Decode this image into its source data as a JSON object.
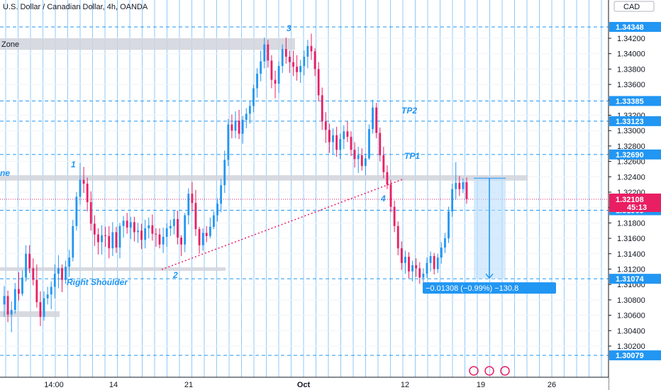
{
  "header": {
    "title": "U.S. Dollar / Canadian Dollar, 4h, OANDA",
    "currency": "CAD"
  },
  "chart_data": {
    "type": "candlestick",
    "symbol": "USDCAD",
    "interval": "4h",
    "ylim": [
      1.3,
      1.345
    ],
    "y_ticks": [
      1.302,
      1.304,
      1.306,
      1.308,
      1.31,
      1.312,
      1.314,
      1.316,
      1.318,
      1.32,
      1.322,
      1.324,
      1.326,
      1.328,
      1.33,
      1.332,
      1.334,
      1.336,
      1.338,
      1.34,
      1.342
    ],
    "y_tick_labels": [
      "1.30200",
      "1.30400",
      "1.30600",
      "1.30800",
      "1.31000",
      "1.31200",
      "1.31400",
      "1.31600",
      "1.31800",
      "1.32000",
      "1.32200",
      "1.32400",
      "1.32600",
      "1.32800",
      "1.33000",
      "1.33200",
      "1.33400",
      "1.33600",
      "1.33800",
      "1.34000",
      "1.34200"
    ],
    "x_ticks": [
      "14:00",
      "14",
      "21",
      "Oct",
      "12",
      "19",
      "26"
    ],
    "level_lines": [
      {
        "value": 1.34348,
        "label": "1.34348"
      },
      {
        "value": 1.33385,
        "label": "1.33385"
      },
      {
        "value": 1.33123,
        "label": "1.33123"
      },
      {
        "value": 1.3269,
        "label": "1.32690"
      },
      {
        "value": 1.31965,
        "label": "1.31965"
      },
      {
        "value": 1.31074,
        "label": "1.31074"
      },
      {
        "value": 1.30079,
        "label": "1.30079"
      }
    ],
    "current_price": {
      "value": 1.32108,
      "label": "1.32108",
      "countdown": "45:13"
    },
    "zones": [
      {
        "label": "Zone",
        "from": 1.3405,
        "to": 1.342
      },
      {
        "label": "ne",
        "from": 1.3235,
        "to": 1.3242
      }
    ],
    "annotations": [
      "1",
      "2",
      "3",
      "4",
      "TP2",
      "TP1",
      "Right Shoulder"
    ],
    "measure": {
      "from": 1.32382,
      "to": 1.31074,
      "label": "−0.01308 (−0.99%) −130.8"
    },
    "candles": [
      [
        1.3074,
        1.3098,
        1.3058,
        1.3085
      ],
      [
        1.3085,
        1.3092,
        1.3051,
        1.3061
      ],
      [
        1.3061,
        1.3078,
        1.3038,
        1.3067
      ],
      [
        1.3067,
        1.3102,
        1.3062,
        1.3094
      ],
      [
        1.3094,
        1.3116,
        1.3079,
        1.3088
      ],
      [
        1.3088,
        1.3118,
        1.3085,
        1.3109
      ],
      [
        1.3109,
        1.3151,
        1.3104,
        1.314
      ],
      [
        1.314,
        1.3151,
        1.3115,
        1.3121
      ],
      [
        1.3121,
        1.3134,
        1.3099,
        1.3106
      ],
      [
        1.3106,
        1.3126,
        1.307,
        1.3077
      ],
      [
        1.3077,
        1.3091,
        1.3046,
        1.3058
      ],
      [
        1.3058,
        1.3091,
        1.3053,
        1.3082
      ],
      [
        1.3082,
        1.3097,
        1.3074,
        1.3087
      ],
      [
        1.3087,
        1.3104,
        1.3068,
        1.3097
      ],
      [
        1.3097,
        1.3126,
        1.3082,
        1.3114
      ],
      [
        1.3114,
        1.3138,
        1.3095,
        1.3121
      ],
      [
        1.3121,
        1.3126,
        1.309,
        1.3106
      ],
      [
        1.3106,
        1.3131,
        1.3101,
        1.3123
      ],
      [
        1.3123,
        1.3145,
        1.311,
        1.3135
      ],
      [
        1.3135,
        1.3184,
        1.313,
        1.3176
      ],
      [
        1.3176,
        1.322,
        1.317,
        1.3214
      ],
      [
        1.3214,
        1.3258,
        1.3204,
        1.3236
      ],
      [
        1.3236,
        1.3253,
        1.3219,
        1.3231
      ],
      [
        1.3231,
        1.3239,
        1.3195,
        1.3207
      ],
      [
        1.3207,
        1.3221,
        1.317,
        1.3179
      ],
      [
        1.3179,
        1.319,
        1.315,
        1.3165
      ],
      [
        1.3165,
        1.3173,
        1.3139,
        1.3155
      ],
      [
        1.3155,
        1.3177,
        1.3139,
        1.3164
      ],
      [
        1.3164,
        1.3175,
        1.3149,
        1.3163
      ],
      [
        1.3163,
        1.3176,
        1.3134,
        1.3147
      ],
      [
        1.3147,
        1.3181,
        1.3137,
        1.3168
      ],
      [
        1.3168,
        1.3175,
        1.3141,
        1.3148
      ],
      [
        1.3148,
        1.318,
        1.3134,
        1.3176
      ],
      [
        1.3176,
        1.3189,
        1.3161,
        1.3183
      ],
      [
        1.3183,
        1.3193,
        1.3166,
        1.3174
      ],
      [
        1.3174,
        1.3188,
        1.3159,
        1.3181
      ],
      [
        1.3181,
        1.3188,
        1.3156,
        1.3168
      ],
      [
        1.3168,
        1.318,
        1.3154,
        1.317
      ],
      [
        1.317,
        1.3179,
        1.3146,
        1.3158
      ],
      [
        1.3158,
        1.3184,
        1.3147,
        1.3173
      ],
      [
        1.3173,
        1.3187,
        1.316,
        1.3177
      ],
      [
        1.3177,
        1.3191,
        1.3157,
        1.3166
      ],
      [
        1.3166,
        1.3173,
        1.3149,
        1.3165
      ],
      [
        1.3165,
        1.3173,
        1.3147,
        1.3152
      ],
      [
        1.3152,
        1.3174,
        1.3141,
        1.3162
      ],
      [
        1.3162,
        1.318,
        1.3149,
        1.3173
      ],
      [
        1.3173,
        1.3184,
        1.3163,
        1.3176
      ],
      [
        1.3176,
        1.3197,
        1.3165,
        1.3185
      ],
      [
        1.3185,
        1.3196,
        1.3152,
        1.3161
      ],
      [
        1.3161,
        1.3164,
        1.3137,
        1.3152
      ],
      [
        1.3152,
        1.3193,
        1.3142,
        1.319
      ],
      [
        1.319,
        1.3225,
        1.3178,
        1.3218
      ],
      [
        1.3218,
        1.3233,
        1.3195,
        1.3206
      ],
      [
        1.3206,
        1.3223,
        1.3163,
        1.3172
      ],
      [
        1.3172,
        1.3175,
        1.314,
        1.3151
      ],
      [
        1.3151,
        1.3173,
        1.3144,
        1.3167
      ],
      [
        1.3167,
        1.3176,
        1.3155,
        1.3163
      ],
      [
        1.3163,
        1.3187,
        1.316,
        1.3175
      ],
      [
        1.3175,
        1.3195,
        1.3172,
        1.319
      ],
      [
        1.319,
        1.3212,
        1.3182,
        1.3205
      ],
      [
        1.3205,
        1.3237,
        1.3194,
        1.3229
      ],
      [
        1.3229,
        1.3274,
        1.3219,
        1.3262
      ],
      [
        1.3262,
        1.3315,
        1.3254,
        1.3308
      ],
      [
        1.3308,
        1.3321,
        1.329,
        1.33
      ],
      [
        1.33,
        1.3325,
        1.329,
        1.3313
      ],
      [
        1.3313,
        1.3327,
        1.3289,
        1.3296
      ],
      [
        1.3296,
        1.3319,
        1.3283,
        1.3314
      ],
      [
        1.3314,
        1.3329,
        1.3303,
        1.3322
      ],
      [
        1.3322,
        1.3339,
        1.3309,
        1.3332
      ],
      [
        1.3332,
        1.336,
        1.3324,
        1.3355
      ],
      [
        1.3355,
        1.3381,
        1.3343,
        1.3374
      ],
      [
        1.3374,
        1.3404,
        1.3364,
        1.339
      ],
      [
        1.339,
        1.3421,
        1.3381,
        1.3412
      ],
      [
        1.3412,
        1.3418,
        1.3382,
        1.3391
      ],
      [
        1.3391,
        1.3398,
        1.3355,
        1.3366
      ],
      [
        1.3366,
        1.3378,
        1.3342,
        1.3361
      ],
      [
        1.3361,
        1.339,
        1.3349,
        1.3384
      ],
      [
        1.3384,
        1.3412,
        1.3375,
        1.3406
      ],
      [
        1.3406,
        1.3421,
        1.3387,
        1.3396
      ],
      [
        1.3396,
        1.3404,
        1.3375,
        1.3389
      ],
      [
        1.3389,
        1.3404,
        1.3371,
        1.3383
      ],
      [
        1.3383,
        1.3398,
        1.3365,
        1.3376
      ],
      [
        1.3376,
        1.3392,
        1.3362,
        1.3384
      ],
      [
        1.3384,
        1.3404,
        1.3372,
        1.3396
      ],
      [
        1.3396,
        1.3418,
        1.3381,
        1.341
      ],
      [
        1.341,
        1.3426,
        1.3392,
        1.3403
      ],
      [
        1.3403,
        1.3407,
        1.3371,
        1.338
      ],
      [
        1.338,
        1.3389,
        1.3338,
        1.3346
      ],
      [
        1.3346,
        1.3356,
        1.3301,
        1.3312
      ],
      [
        1.3312,
        1.3324,
        1.3284,
        1.3301
      ],
      [
        1.3301,
        1.3309,
        1.3271,
        1.3285
      ],
      [
        1.3285,
        1.3303,
        1.3269,
        1.3294
      ],
      [
        1.3294,
        1.3305,
        1.3266,
        1.3275
      ],
      [
        1.3275,
        1.3296,
        1.3263,
        1.3289
      ],
      [
        1.3289,
        1.3307,
        1.3276,
        1.3299
      ],
      [
        1.3299,
        1.3312,
        1.3285,
        1.3292
      ],
      [
        1.3292,
        1.3299,
        1.3267,
        1.3275
      ],
      [
        1.3275,
        1.3285,
        1.3252,
        1.3263
      ],
      [
        1.3263,
        1.3279,
        1.3245,
        1.3268
      ],
      [
        1.3268,
        1.3277,
        1.3248,
        1.3254
      ],
      [
        1.3254,
        1.327,
        1.3242,
        1.3264
      ],
      [
        1.3264,
        1.3308,
        1.3262,
        1.3302
      ],
      [
        1.3302,
        1.334,
        1.3296,
        1.333
      ],
      [
        1.333,
        1.3336,
        1.329,
        1.3297
      ],
      [
        1.3297,
        1.3304,
        1.326,
        1.3268
      ],
      [
        1.3268,
        1.3279,
        1.3238,
        1.3246
      ],
      [
        1.3246,
        1.3255,
        1.3224,
        1.323
      ],
      [
        1.323,
        1.3236,
        1.3194,
        1.3201
      ],
      [
        1.3201,
        1.3209,
        1.3168,
        1.3176
      ],
      [
        1.3176,
        1.3182,
        1.3138,
        1.3147
      ],
      [
        1.3147,
        1.3156,
        1.3119,
        1.3128
      ],
      [
        1.3128,
        1.3144,
        1.3114,
        1.3136
      ],
      [
        1.3136,
        1.3142,
        1.3108,
        1.3117
      ],
      [
        1.3117,
        1.3131,
        1.3104,
        1.3125
      ],
      [
        1.3125,
        1.3134,
        1.311,
        1.3121
      ],
      [
        1.3121,
        1.3129,
        1.3101,
        1.3109
      ],
      [
        1.3109,
        1.3121,
        1.31,
        1.3114
      ],
      [
        1.3114,
        1.3135,
        1.3108,
        1.3128
      ],
      [
        1.3128,
        1.3143,
        1.3117,
        1.3137
      ],
      [
        1.3137,
        1.3141,
        1.3113,
        1.312
      ],
      [
        1.312,
        1.314,
        1.3115,
        1.3135
      ],
      [
        1.3135,
        1.3155,
        1.3127,
        1.3148
      ],
      [
        1.3148,
        1.3167,
        1.3141,
        1.316
      ],
      [
        1.316,
        1.3201,
        1.3154,
        1.3195
      ],
      [
        1.3195,
        1.3231,
        1.3188,
        1.3224
      ],
      [
        1.3224,
        1.3259,
        1.321,
        1.3232
      ],
      [
        1.3232,
        1.3241,
        1.3215,
        1.3224
      ],
      [
        1.3224,
        1.3238,
        1.3219,
        1.3233
      ],
      [
        1.3233,
        1.3239,
        1.3205,
        1.3211
      ]
    ]
  }
}
